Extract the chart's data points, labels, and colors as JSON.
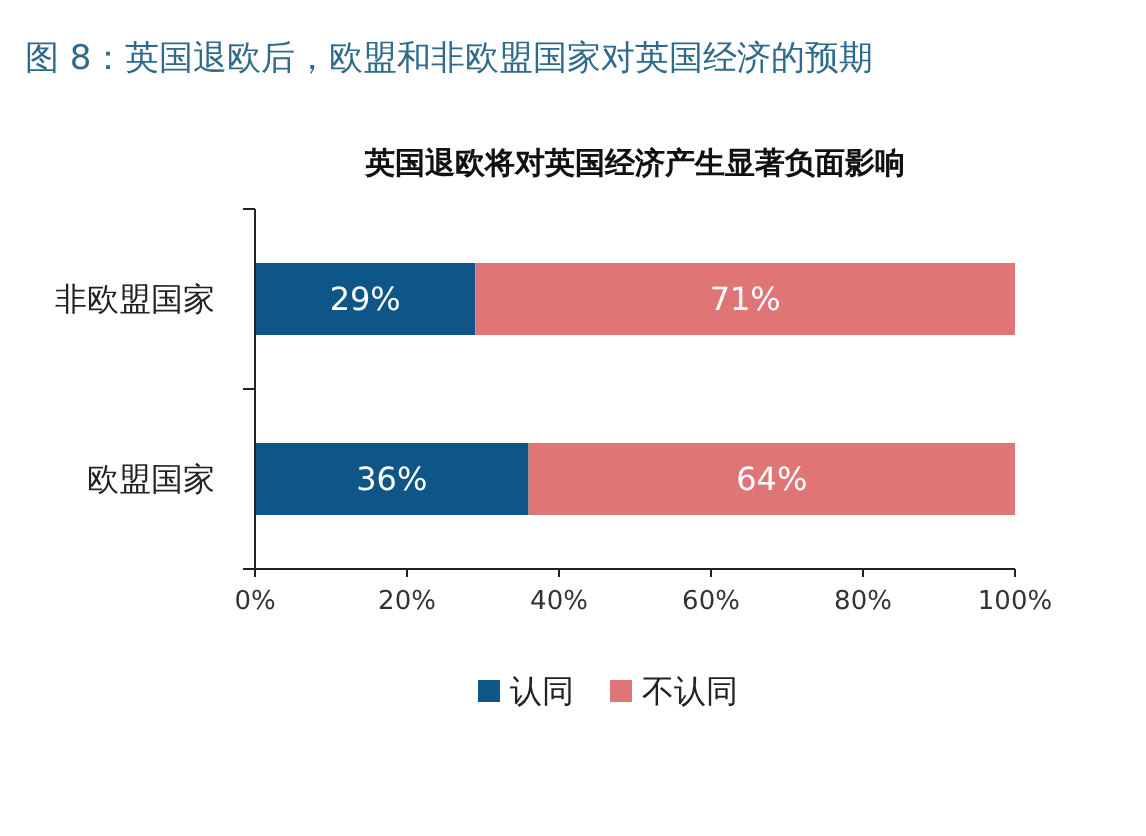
{
  "chart_data": {
    "type": "bar",
    "orientation": "horizontal",
    "stacked": true,
    "title": "图 8：英国退欧后，欧盟和非欧盟国家对英国经济的预期",
    "subtitle": "英国退欧将对英国经济产生显著负面影响",
    "categories": [
      "非欧盟国家",
      "欧盟国家"
    ],
    "series": [
      {
        "name": "认同",
        "color": "#0e5687",
        "values": [
          29,
          36
        ],
        "value_labels": [
          "29%",
          "36%"
        ]
      },
      {
        "name": "不认同",
        "color": "#e07575",
        "values": [
          71,
          64
        ],
        "value_labels": [
          "71%",
          "64%"
        ]
      }
    ],
    "xlim": [
      0,
      100
    ],
    "xticks": [
      {
        "value": 0,
        "label": "0%"
      },
      {
        "value": 20,
        "label": "20%"
      },
      {
        "value": 40,
        "label": "40%"
      },
      {
        "value": 60,
        "label": "60%"
      },
      {
        "value": 80,
        "label": "80%"
      },
      {
        "value": 100,
        "label": "100%"
      }
    ],
    "grid": false,
    "legend": "bottom"
  }
}
